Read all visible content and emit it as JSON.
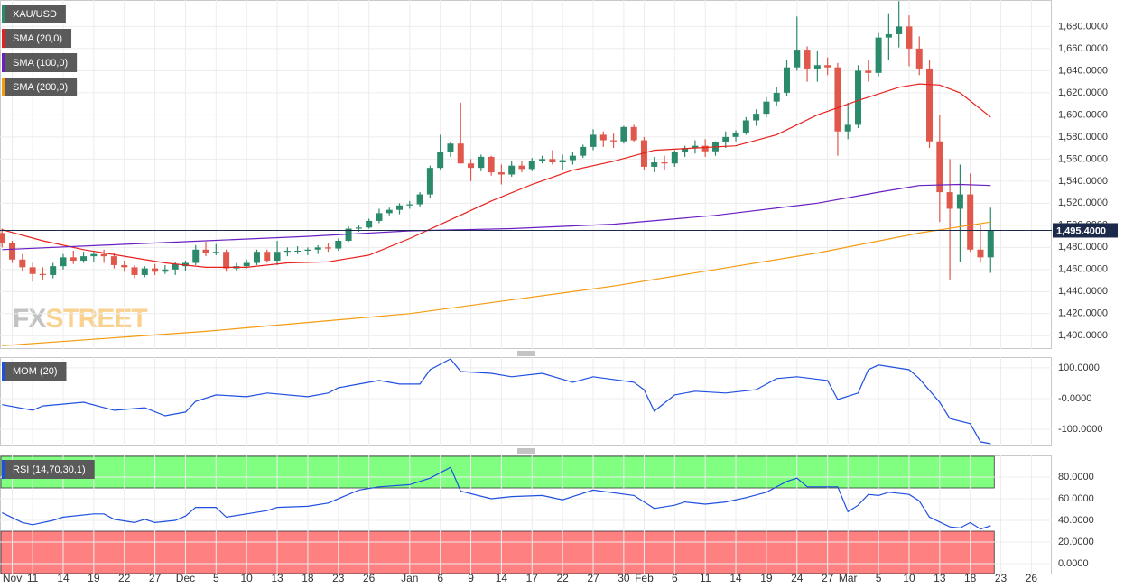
{
  "chart_data": [
    {
      "type": "candlestick",
      "title": "XAU/USD",
      "up_color": "#2c8a6c",
      "down_color": "#e0574b",
      "open": [
        1493,
        1484,
        1469,
        1462,
        1456,
        1455,
        1463,
        1471,
        1468,
        1472,
        1474,
        1472,
        1464,
        1462,
        1455,
        1461,
        1458,
        1460,
        1463,
        1466,
        1478,
        1475,
        1476,
        1461,
        1463,
        1466,
        1476,
        1468,
        1476,
        1477,
        1477,
        1478,
        1480,
        1479,
        1486,
        1497,
        1498,
        1504,
        1511,
        1514,
        1518,
        1519,
        1528,
        1552,
        1566,
        1574,
        1556,
        1552,
        1562,
        1548,
        1546,
        1554,
        1551,
        1558,
        1560,
        1557,
        1559,
        1563,
        1571,
        1582,
        1577,
        1576,
        1589,
        1577,
        1553,
        1557,
        1556,
        1566,
        1570,
        1572,
        1567,
        1575,
        1580,
        1584,
        1595,
        1601,
        1612,
        1620,
        1643,
        1659,
        1642,
        1645,
        1643,
        1585,
        1591,
        1640,
        1638,
        1670,
        1673,
        1680,
        1660,
        1642,
        1576,
        1530,
        1515,
        1528,
        1478,
        1471
      ],
      "high": [
        1497,
        1486,
        1474,
        1466,
        1462,
        1466,
        1474,
        1477,
        1476,
        1477,
        1478,
        1475,
        1468,
        1464,
        1463,
        1465,
        1464,
        1467,
        1468,
        1482,
        1485,
        1483,
        1478,
        1466,
        1469,
        1478,
        1478,
        1486,
        1480,
        1481,
        1480,
        1482,
        1484,
        1488,
        1499,
        1500,
        1506,
        1515,
        1516,
        1520,
        1522,
        1530,
        1554,
        1582,
        1575,
        1611,
        1560,
        1564,
        1563,
        1555,
        1558,
        1558,
        1561,
        1563,
        1568,
        1564,
        1566,
        1573,
        1587,
        1585,
        1583,
        1590,
        1591,
        1580,
        1562,
        1563,
        1568,
        1572,
        1577,
        1578,
        1576,
        1585,
        1586,
        1598,
        1605,
        1616,
        1625,
        1650,
        1689,
        1662,
        1658,
        1652,
        1647,
        1611,
        1645,
        1650,
        1674,
        1692,
        1703,
        1690,
        1671,
        1650,
        1600,
        1560,
        1555,
        1547,
        1500,
        1516
      ],
      "low": [
        1480,
        1466,
        1458,
        1449,
        1451,
        1452,
        1460,
        1465,
        1466,
        1467,
        1466,
        1461,
        1458,
        1452,
        1453,
        1455,
        1456,
        1455,
        1459,
        1464,
        1472,
        1473,
        1458,
        1459,
        1461,
        1464,
        1466,
        1464,
        1472,
        1474,
        1473,
        1474,
        1476,
        1477,
        1485,
        1494,
        1497,
        1502,
        1509,
        1510,
        1515,
        1517,
        1525,
        1550,
        1562,
        1556,
        1540,
        1549,
        1545,
        1537,
        1544,
        1548,
        1549,
        1556,
        1555,
        1550,
        1555,
        1561,
        1568,
        1571,
        1570,
        1574,
        1575,
        1550,
        1548,
        1550,
        1553,
        1562,
        1565,
        1562,
        1563,
        1570,
        1576,
        1582,
        1590,
        1598,
        1608,
        1617,
        1640,
        1630,
        1630,
        1636,
        1563,
        1578,
        1588,
        1630,
        1635,
        1650,
        1661,
        1644,
        1636,
        1570,
        1503,
        1451,
        1467,
        1476,
        1466,
        1457
      ],
      "close": [
        1484,
        1469,
        1462,
        1456,
        1455,
        1463,
        1471,
        1468,
        1472,
        1474,
        1472,
        1464,
        1462,
        1455,
        1461,
        1458,
        1460,
        1465,
        1466,
        1478,
        1475,
        1476,
        1461,
        1463,
        1466,
        1476,
        1468,
        1476,
        1477,
        1477,
        1478,
        1480,
        1479,
        1486,
        1497,
        1498,
        1504,
        1511,
        1514,
        1518,
        1519,
        1528,
        1552,
        1566,
        1574,
        1556,
        1552,
        1562,
        1548,
        1546,
        1554,
        1551,
        1558,
        1560,
        1557,
        1559,
        1563,
        1571,
        1582,
        1577,
        1576,
        1589,
        1577,
        1553,
        1557,
        1556,
        1566,
        1570,
        1572,
        1567,
        1575,
        1580,
        1584,
        1595,
        1601,
        1612,
        1620,
        1643,
        1659,
        1642,
        1645,
        1643,
        1585,
        1591,
        1640,
        1638,
        1670,
        1673,
        1680,
        1660,
        1642,
        1576,
        1530,
        1515,
        1528,
        1478,
        1471,
        1495
      ],
      "series": [
        {
          "name": "SMA (20,0)",
          "color": "#e8201c",
          "x": [
            0,
            4,
            8,
            12,
            16,
            20,
            24,
            28,
            32,
            36,
            40,
            44,
            48,
            52,
            56,
            60,
            64,
            68,
            72,
            76,
            80,
            84,
            88,
            90,
            92,
            94,
            97
          ],
          "values": [
            1496,
            1486,
            1478,
            1472,
            1466,
            1462,
            1462,
            1466,
            1467,
            1473,
            1488,
            1505,
            1522,
            1537,
            1550,
            1558,
            1568,
            1570,
            1572,
            1582,
            1600,
            1613,
            1625,
            1628,
            1627,
            1620,
            1598
          ]
        },
        {
          "name": "SMA (100,0)",
          "color": "#6a1fc2",
          "x": [
            0,
            10,
            20,
            30,
            40,
            50,
            60,
            70,
            80,
            86,
            90,
            94,
            97
          ],
          "values": [
            1478,
            1482,
            1486,
            1490,
            1495,
            1497,
            1501,
            1509,
            1520,
            1530,
            1536,
            1537,
            1536
          ]
        },
        {
          "name": "SMA (200,0)",
          "color": "#f39c12",
          "x": [
            0,
            20,
            40,
            60,
            80,
            90,
            97
          ],
          "values": [
            1391,
            1404,
            1420,
            1445,
            1475,
            1493,
            1503
          ]
        }
      ],
      "current_price": 1495.4,
      "current_price_label": "1,495.4000",
      "watermark": {
        "prefix": "FX",
        "suffix": "STREET"
      },
      "xlim": [
        -0.2,
        103
      ],
      "xticks": [
        {
          "value": 1,
          "label": "Nov"
        },
        {
          "value": 3,
          "label": "11"
        },
        {
          "value": 6,
          "label": "14"
        },
        {
          "value": 9,
          "label": "19"
        },
        {
          "value": 12,
          "label": "22"
        },
        {
          "value": 15,
          "label": "27"
        },
        {
          "value": 18,
          "label": "Dec"
        },
        {
          "value": 21,
          "label": "5"
        },
        {
          "value": 24,
          "label": "10"
        },
        {
          "value": 27,
          "label": "13"
        },
        {
          "value": 30,
          "label": "18"
        },
        {
          "value": 33,
          "label": "23"
        },
        {
          "value": 36,
          "label": "26"
        },
        {
          "value": 40,
          "label": "Jan"
        },
        {
          "value": 43,
          "label": "6"
        },
        {
          "value": 46,
          "label": "9"
        },
        {
          "value": 49,
          "label": "14"
        },
        {
          "value": 52,
          "label": "17"
        },
        {
          "value": 55,
          "label": "22"
        },
        {
          "value": 58,
          "label": "27"
        },
        {
          "value": 61,
          "label": "30"
        },
        {
          "value": 63,
          "label": "Feb"
        },
        {
          "value": 66,
          "label": "6"
        },
        {
          "value": 69,
          "label": "11"
        },
        {
          "value": 72,
          "label": "14"
        },
        {
          "value": 75,
          "label": "19"
        },
        {
          "value": 78,
          "label": "24"
        },
        {
          "value": 81,
          "label": "27"
        },
        {
          "value": 83,
          "label": "Mar"
        },
        {
          "value": 86,
          "label": "5"
        },
        {
          "value": 89,
          "label": "10"
        },
        {
          "value": 92,
          "label": "13"
        },
        {
          "value": 95,
          "label": "18"
        },
        {
          "value": 98,
          "label": "23"
        },
        {
          "value": 101,
          "label": "26"
        }
      ],
      "ylim": [
        1388,
        1704
      ],
      "yticks": [
        {
          "value": 1400,
          "label": "1,400.0000"
        },
        {
          "value": 1420,
          "label": "1,420.0000"
        },
        {
          "value": 1440,
          "label": "1,440.0000"
        },
        {
          "value": 1460,
          "label": "1,460.0000"
        },
        {
          "value": 1480,
          "label": "1,480.0000"
        },
        {
          "value": 1500,
          "label": "1,500.0000"
        },
        {
          "value": 1520,
          "label": "1,520.0000"
        },
        {
          "value": 1540,
          "label": "1,540.0000"
        },
        {
          "value": 1560,
          "label": "1,560.0000"
        },
        {
          "value": 1580,
          "label": "1,580.0000"
        },
        {
          "value": 1600,
          "label": "1,600.0000"
        },
        {
          "value": 1620,
          "label": "1,620.0000"
        },
        {
          "value": 1640,
          "label": "1,640.0000"
        },
        {
          "value": 1660,
          "label": "1,660.0000"
        },
        {
          "value": 1680,
          "label": "1,680.0000"
        }
      ],
      "grid": true
    },
    {
      "type": "line",
      "title": "MOM (20)",
      "series": [
        {
          "color": "#1f4fe0",
          "x": [
            0,
            3,
            4,
            8,
            11,
            14,
            16,
            18,
            19,
            21,
            24,
            26,
            30,
            32,
            33,
            35,
            37,
            39,
            41,
            42,
            44,
            45,
            48,
            50,
            53,
            56,
            58,
            62,
            63,
            64,
            66,
            68,
            71,
            74,
            76,
            78,
            81,
            82,
            84,
            85,
            86,
            89,
            90,
            92,
            93,
            95,
            96,
            97
          ],
          "values": [
            -20,
            -38,
            -24,
            -12,
            -38,
            -30,
            -56,
            -44,
            -9,
            12,
            6,
            18,
            6,
            18,
            35,
            47,
            59,
            47,
            47,
            94,
            129,
            88,
            82,
            71,
            82,
            53,
            71,
            53,
            29,
            -41,
            12,
            24,
            18,
            29,
            65,
            71,
            59,
            -3,
            18,
            94,
            109,
            94,
            65,
            -12,
            -65,
            -82,
            -141,
            -147
          ]
        }
      ],
      "ylim": [
        -153,
        135
      ],
      "yticks": [
        {
          "value": -100,
          "label": "-100.0000"
        },
        {
          "value": 0,
          "label": "-0.0000"
        },
        {
          "value": 100,
          "label": "100.0000"
        }
      ],
      "grid": true
    },
    {
      "type": "line",
      "title": "RSI (14,70,30,1)",
      "overbought": 70,
      "oversold": 30,
      "overbought_color": "#80ff80",
      "oversold_color": "#ff8080",
      "series": [
        {
          "color": "#1f4fe0",
          "x": [
            0,
            2,
            3,
            5,
            6,
            9,
            10,
            11,
            13,
            14,
            15,
            17,
            18,
            19,
            21,
            22,
            24,
            26,
            27,
            30,
            32,
            34,
            35,
            37,
            40,
            42,
            44,
            45,
            48,
            50,
            53,
            55,
            58,
            62,
            64,
            66,
            67,
            69,
            71,
            73,
            75,
            77,
            78,
            79,
            82,
            83,
            84,
            85,
            86,
            87,
            89,
            90,
            91,
            93,
            94,
            95,
            96,
            97
          ],
          "values": [
            47,
            38,
            36,
            40,
            43,
            46,
            46,
            41,
            38,
            41,
            38,
            40,
            44,
            52,
            52,
            43,
            46,
            49,
            52,
            53,
            56,
            64,
            68,
            71,
            73,
            79,
            89,
            67,
            60,
            62,
            63,
            59,
            68,
            63,
            51,
            54,
            57,
            55,
            57,
            61,
            66,
            76,
            79,
            71,
            71,
            48,
            54,
            64,
            63,
            66,
            64,
            58,
            43,
            34,
            33,
            38,
            32,
            35
          ]
        }
      ],
      "ylim": [
        -10,
        100
      ],
      "yticks": [
        {
          "value": 0,
          "label": "0.0000"
        },
        {
          "value": 20,
          "label": "20.0000"
        },
        {
          "value": 40,
          "label": "40.0000"
        },
        {
          "value": 60,
          "label": "60.0000"
        },
        {
          "value": 80,
          "label": "80.0000"
        }
      ],
      "grid": true
    }
  ]
}
